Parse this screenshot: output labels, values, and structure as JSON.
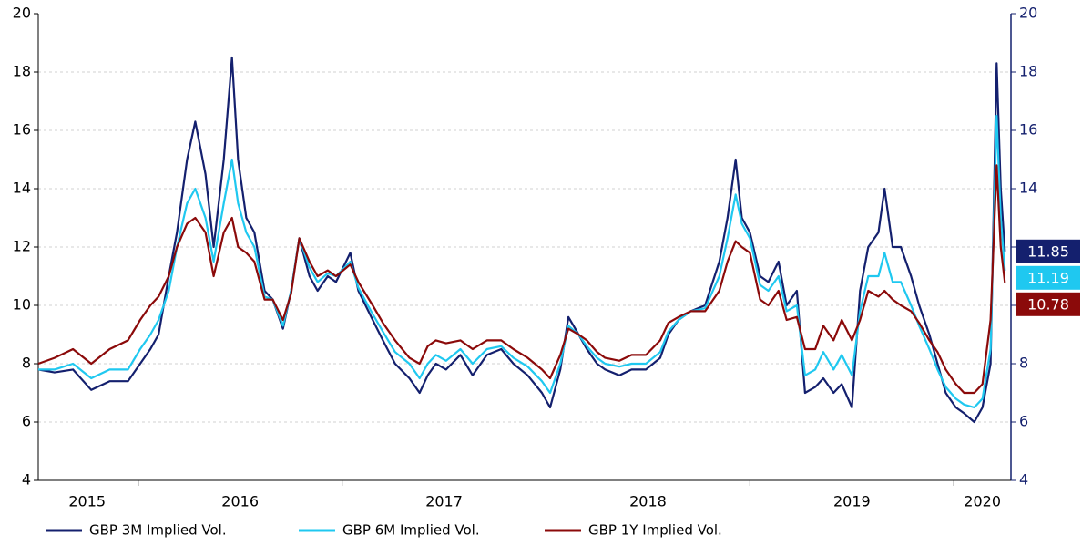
{
  "chart_data": {
    "type": "line",
    "x": [
      2015.51,
      2015.59,
      2015.68,
      2015.77,
      2015.86,
      2015.95,
      2016.01,
      2016.06,
      2016.1,
      2016.15,
      2016.19,
      2016.24,
      2016.28,
      2016.33,
      2016.37,
      2016.42,
      2016.46,
      2016.49,
      2016.53,
      2016.57,
      2016.62,
      2016.66,
      2016.71,
      2016.75,
      2016.79,
      2016.84,
      2016.88,
      2016.93,
      2016.97,
      2017.04,
      2017.08,
      2017.15,
      2017.2,
      2017.26,
      2017.33,
      2017.38,
      2017.42,
      2017.46,
      2017.51,
      2017.58,
      2017.64,
      2017.71,
      2017.78,
      2017.84,
      2017.91,
      2017.98,
      2018.02,
      2018.07,
      2018.11,
      2018.16,
      2018.2,
      2018.25,
      2018.29,
      2018.36,
      2018.42,
      2018.49,
      2018.56,
      2018.6,
      2018.65,
      2018.71,
      2018.78,
      2018.85,
      2018.89,
      2018.93,
      2018.96,
      2019.0,
      2019.05,
      2019.09,
      2019.14,
      2019.18,
      2019.23,
      2019.27,
      2019.32,
      2019.36,
      2019.41,
      2019.45,
      2019.5,
      2019.54,
      2019.58,
      2019.63,
      2019.66,
      2019.7,
      2019.74,
      2019.79,
      2019.83,
      2019.88,
      2019.92,
      2019.96,
      2020.01,
      2020.05,
      2020.1,
      2020.14,
      2020.18,
      2020.21,
      2020.23,
      2020.25
    ],
    "series": [
      {
        "name": "GBP 3M Implied Vol.",
        "color": "#14206e",
        "last": 11.85,
        "values": [
          7.8,
          7.7,
          7.8,
          7.1,
          7.4,
          7.4,
          8.0,
          8.5,
          9.0,
          11.0,
          12.5,
          15.0,
          16.3,
          14.5,
          12.0,
          15.0,
          18.5,
          15.0,
          13.0,
          12.5,
          10.5,
          10.2,
          9.2,
          10.5,
          12.3,
          11.0,
          10.5,
          11.0,
          10.8,
          11.8,
          10.5,
          9.5,
          8.8,
          8.0,
          7.5,
          7.0,
          7.6,
          8.0,
          7.8,
          8.3,
          7.6,
          8.3,
          8.5,
          8.0,
          7.6,
          7.0,
          6.5,
          7.8,
          9.6,
          9.0,
          8.5,
          8.0,
          7.8,
          7.6,
          7.8,
          7.8,
          8.2,
          9.0,
          9.5,
          9.8,
          10.0,
          11.5,
          13.0,
          15.0,
          13.0,
          12.5,
          11.0,
          10.8,
          11.5,
          10.0,
          10.5,
          7.0,
          7.2,
          7.5,
          7.0,
          7.3,
          6.5,
          10.5,
          12.0,
          12.5,
          14.0,
          12.0,
          12.0,
          11.0,
          10.0,
          9.0,
          8.0,
          7.0,
          6.5,
          6.3,
          6.0,
          6.5,
          8.0,
          18.3,
          14.0,
          11.85
        ]
      },
      {
        "name": "GBP 6M Implied Vol.",
        "color": "#1fc8f0",
        "last": 11.19,
        "values": [
          7.8,
          7.8,
          8.0,
          7.5,
          7.8,
          7.8,
          8.5,
          9.0,
          9.5,
          10.5,
          12.0,
          13.5,
          14.0,
          13.0,
          11.5,
          13.5,
          15.0,
          13.5,
          12.5,
          12.0,
          10.3,
          10.2,
          9.3,
          10.5,
          12.3,
          11.3,
          10.8,
          11.1,
          11.0,
          11.5,
          10.6,
          9.7,
          9.1,
          8.4,
          8.0,
          7.5,
          8.0,
          8.3,
          8.1,
          8.5,
          8.0,
          8.5,
          8.6,
          8.2,
          7.9,
          7.4,
          7.0,
          8.0,
          9.3,
          9.0,
          8.6,
          8.2,
          8.0,
          7.9,
          8.0,
          8.0,
          8.4,
          9.1,
          9.5,
          9.8,
          9.9,
          11.0,
          12.3,
          13.8,
          12.8,
          12.3,
          10.7,
          10.5,
          11.0,
          9.8,
          10.0,
          7.6,
          7.8,
          8.4,
          7.8,
          8.3,
          7.6,
          9.8,
          11.0,
          11.0,
          11.8,
          10.8,
          10.8,
          10.0,
          9.3,
          8.5,
          7.8,
          7.2,
          6.8,
          6.6,
          6.5,
          6.8,
          8.5,
          16.5,
          13.0,
          11.19
        ]
      },
      {
        "name": "GBP 1Y Implied Vol.",
        "color": "#8b0a0a",
        "last": 10.78,
        "values": [
          8.0,
          8.2,
          8.5,
          8.0,
          8.5,
          8.8,
          9.5,
          10.0,
          10.3,
          11.0,
          12.0,
          12.8,
          13.0,
          12.5,
          11.0,
          12.5,
          13.0,
          12.0,
          11.8,
          11.5,
          10.2,
          10.2,
          9.5,
          10.4,
          12.3,
          11.5,
          11.0,
          11.2,
          11.0,
          11.4,
          10.8,
          10.0,
          9.4,
          8.8,
          8.2,
          8.0,
          8.6,
          8.8,
          8.7,
          8.8,
          8.5,
          8.8,
          8.8,
          8.5,
          8.2,
          7.8,
          7.5,
          8.3,
          9.2,
          9.0,
          8.8,
          8.4,
          8.2,
          8.1,
          8.3,
          8.3,
          8.8,
          9.4,
          9.6,
          9.8,
          9.8,
          10.5,
          11.5,
          12.2,
          12.0,
          11.8,
          10.2,
          10.0,
          10.5,
          9.5,
          9.6,
          8.5,
          8.5,
          9.3,
          8.8,
          9.5,
          8.8,
          9.5,
          10.5,
          10.3,
          10.5,
          10.2,
          10.0,
          9.8,
          9.4,
          8.8,
          8.4,
          7.8,
          7.3,
          7.0,
          7.0,
          7.3,
          9.5,
          14.8,
          12.0,
          10.78
        ]
      }
    ],
    "xlim": [
      2015.51,
      2020.28
    ],
    "xticks": [
      2016,
      2017,
      2018,
      2019,
      2020
    ],
    "xlabels": [
      {
        "value": 2015.75,
        "label": "2015"
      },
      {
        "value": 2016.5,
        "label": "2016"
      },
      {
        "value": 2017.5,
        "label": "2017"
      },
      {
        "value": 2018.5,
        "label": "2018"
      },
      {
        "value": 2019.5,
        "label": "2019"
      },
      {
        "value": 2020.14,
        "label": "2020"
      }
    ],
    "ylim": [
      4,
      20
    ],
    "yticks": [
      4,
      6,
      8,
      10,
      12,
      14,
      16,
      18,
      20
    ],
    "y2lim": [
      4,
      20
    ],
    "y2ticks": [
      4,
      6,
      8,
      10,
      12,
      14,
      16,
      18,
      20
    ],
    "y2color": "#14206e",
    "grid": true,
    "legend": "bottom"
  }
}
